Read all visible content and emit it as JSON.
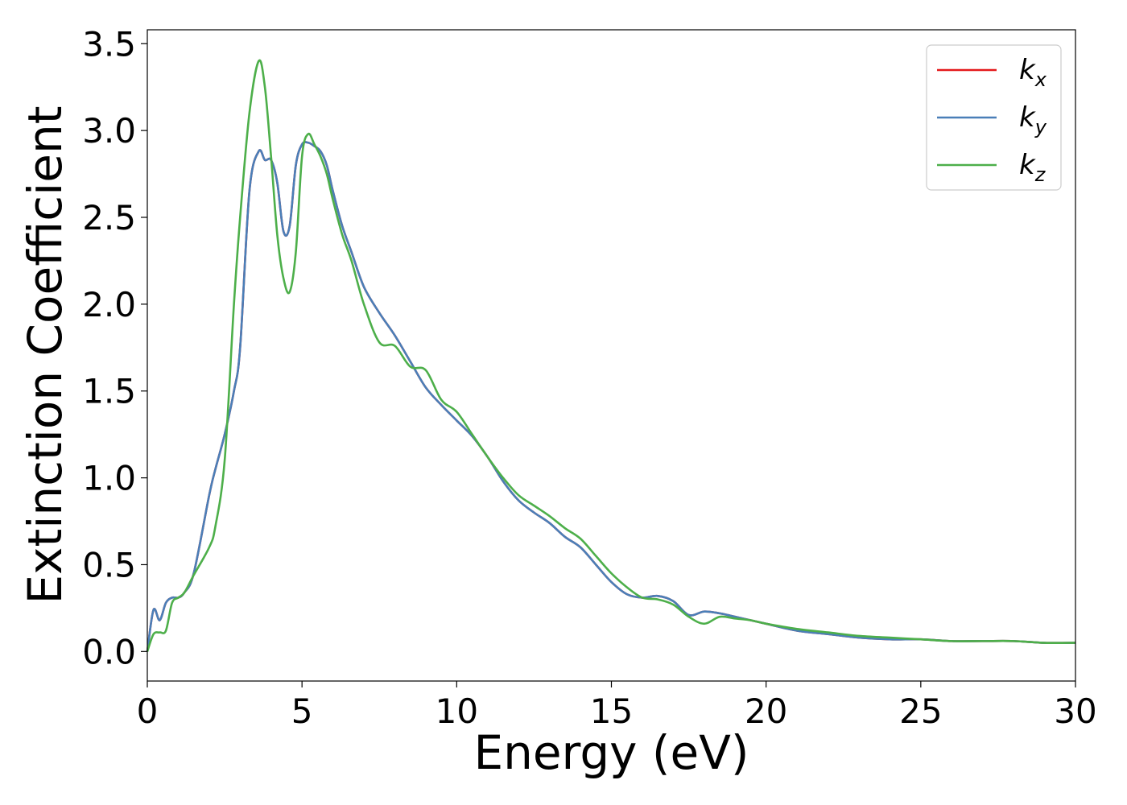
{
  "chart_data": {
    "type": "line",
    "xlabel": "Energy (eV)",
    "ylabel": "Extinction Coefficient",
    "xlim": [
      0,
      30
    ],
    "ylim": [
      -0.17,
      3.58
    ],
    "xticks": [
      0,
      5,
      10,
      15,
      20,
      25,
      30
    ],
    "xtick_labels": [
      "0",
      "5",
      "10",
      "15",
      "20",
      "25",
      "30"
    ],
    "yticks": [
      0.0,
      0.5,
      1.0,
      1.5,
      2.0,
      2.5,
      3.0,
      3.5
    ],
    "ytick_labels": [
      "0.0",
      "0.5",
      "1.0",
      "1.5",
      "2.0",
      "2.5",
      "3.0",
      "3.5"
    ],
    "grid": false,
    "legend_position": "top-right",
    "series": [
      {
        "name": "k_x",
        "label_base": "k",
        "label_sub": "x",
        "color": "#e41a1c",
        "x": [
          0,
          0.2,
          0.4,
          0.6,
          0.8,
          1.0,
          1.2,
          1.5,
          2.0,
          2.2,
          2.5,
          2.8,
          3.0,
          3.3,
          3.6,
          3.8,
          4.0,
          4.2,
          4.4,
          4.6,
          4.8,
          5.0,
          5.2,
          5.4,
          5.6,
          5.8,
          6.0,
          6.3,
          6.6,
          7.0,
          7.5,
          8.0,
          8.5,
          9.0,
          9.5,
          10.0,
          10.5,
          11.0,
          11.5,
          12.0,
          12.5,
          13.0,
          13.5,
          14.0,
          14.5,
          15.0,
          15.5,
          16.0,
          16.5,
          17.0,
          17.5,
          18.0,
          18.5,
          19.0,
          19.5,
          20.0,
          21.0,
          22.0,
          23.0,
          24.0,
          25.0,
          26.0,
          27.0,
          28.0,
          29.0,
          30.0
        ],
        "y": [
          0.0,
          0.24,
          0.18,
          0.28,
          0.31,
          0.31,
          0.34,
          0.45,
          0.9,
          1.05,
          1.25,
          1.5,
          1.75,
          2.65,
          2.88,
          2.83,
          2.83,
          2.7,
          2.42,
          2.45,
          2.8,
          2.92,
          2.93,
          2.91,
          2.88,
          2.8,
          2.65,
          2.45,
          2.3,
          2.1,
          1.95,
          1.82,
          1.67,
          1.52,
          1.42,
          1.33,
          1.24,
          1.12,
          0.98,
          0.87,
          0.8,
          0.74,
          0.66,
          0.6,
          0.5,
          0.4,
          0.33,
          0.31,
          0.32,
          0.29,
          0.21,
          0.23,
          0.22,
          0.2,
          0.18,
          0.16,
          0.12,
          0.1,
          0.08,
          0.07,
          0.07,
          0.06,
          0.06,
          0.06,
          0.05,
          0.05
        ]
      },
      {
        "name": "k_y",
        "label_base": "k",
        "label_sub": "y",
        "color": "#4a7fb8",
        "x": [
          0,
          0.2,
          0.4,
          0.6,
          0.8,
          1.0,
          1.2,
          1.5,
          2.0,
          2.2,
          2.5,
          2.8,
          3.0,
          3.3,
          3.6,
          3.8,
          4.0,
          4.2,
          4.4,
          4.6,
          4.8,
          5.0,
          5.2,
          5.4,
          5.6,
          5.8,
          6.0,
          6.3,
          6.6,
          7.0,
          7.5,
          8.0,
          8.5,
          9.0,
          9.5,
          10.0,
          10.5,
          11.0,
          11.5,
          12.0,
          12.5,
          13.0,
          13.5,
          14.0,
          14.5,
          15.0,
          15.5,
          16.0,
          16.5,
          17.0,
          17.5,
          18.0,
          18.5,
          19.0,
          19.5,
          20.0,
          21.0,
          22.0,
          23.0,
          24.0,
          25.0,
          26.0,
          27.0,
          28.0,
          29.0,
          30.0
        ],
        "y": [
          0.0,
          0.24,
          0.18,
          0.28,
          0.31,
          0.31,
          0.34,
          0.45,
          0.9,
          1.05,
          1.25,
          1.5,
          1.75,
          2.65,
          2.88,
          2.83,
          2.83,
          2.7,
          2.42,
          2.45,
          2.8,
          2.92,
          2.93,
          2.91,
          2.88,
          2.8,
          2.65,
          2.45,
          2.3,
          2.1,
          1.95,
          1.82,
          1.67,
          1.52,
          1.42,
          1.33,
          1.24,
          1.12,
          0.98,
          0.87,
          0.8,
          0.74,
          0.66,
          0.6,
          0.5,
          0.4,
          0.33,
          0.31,
          0.32,
          0.29,
          0.21,
          0.23,
          0.22,
          0.2,
          0.18,
          0.16,
          0.12,
          0.1,
          0.08,
          0.07,
          0.07,
          0.06,
          0.06,
          0.06,
          0.05,
          0.05
        ]
      },
      {
        "name": "k_z",
        "label_base": "k",
        "label_sub": "z",
        "color": "#4daf4a",
        "x": [
          0,
          0.2,
          0.4,
          0.6,
          0.8,
          1.0,
          1.2,
          1.5,
          2.0,
          2.2,
          2.5,
          2.8,
          3.0,
          3.3,
          3.6,
          3.8,
          4.0,
          4.2,
          4.4,
          4.6,
          4.8,
          5.0,
          5.2,
          5.4,
          5.6,
          5.8,
          6.0,
          6.3,
          6.6,
          7.0,
          7.5,
          8.0,
          8.5,
          9.0,
          9.5,
          10.0,
          10.5,
          11.0,
          11.5,
          12.0,
          12.5,
          13.0,
          13.5,
          14.0,
          14.5,
          15.0,
          15.5,
          16.0,
          16.5,
          17.0,
          17.5,
          18.0,
          18.5,
          19.0,
          19.5,
          20.0,
          21.0,
          22.0,
          23.0,
          24.0,
          25.0,
          26.0,
          27.0,
          28.0,
          29.0,
          30.0
        ],
        "y": [
          0.0,
          0.1,
          0.11,
          0.12,
          0.28,
          0.31,
          0.34,
          0.44,
          0.6,
          0.72,
          1.1,
          2.0,
          2.5,
          3.1,
          3.4,
          3.25,
          2.85,
          2.4,
          2.15,
          2.07,
          2.3,
          2.85,
          2.98,
          2.92,
          2.85,
          2.75,
          2.6,
          2.4,
          2.25,
          2.0,
          1.78,
          1.76,
          1.64,
          1.62,
          1.45,
          1.38,
          1.25,
          1.12,
          1.0,
          0.9,
          0.84,
          0.78,
          0.71,
          0.65,
          0.55,
          0.45,
          0.37,
          0.31,
          0.3,
          0.27,
          0.2,
          0.16,
          0.2,
          0.19,
          0.18,
          0.16,
          0.13,
          0.11,
          0.09,
          0.08,
          0.07,
          0.06,
          0.06,
          0.06,
          0.05,
          0.05
        ]
      }
    ]
  }
}
